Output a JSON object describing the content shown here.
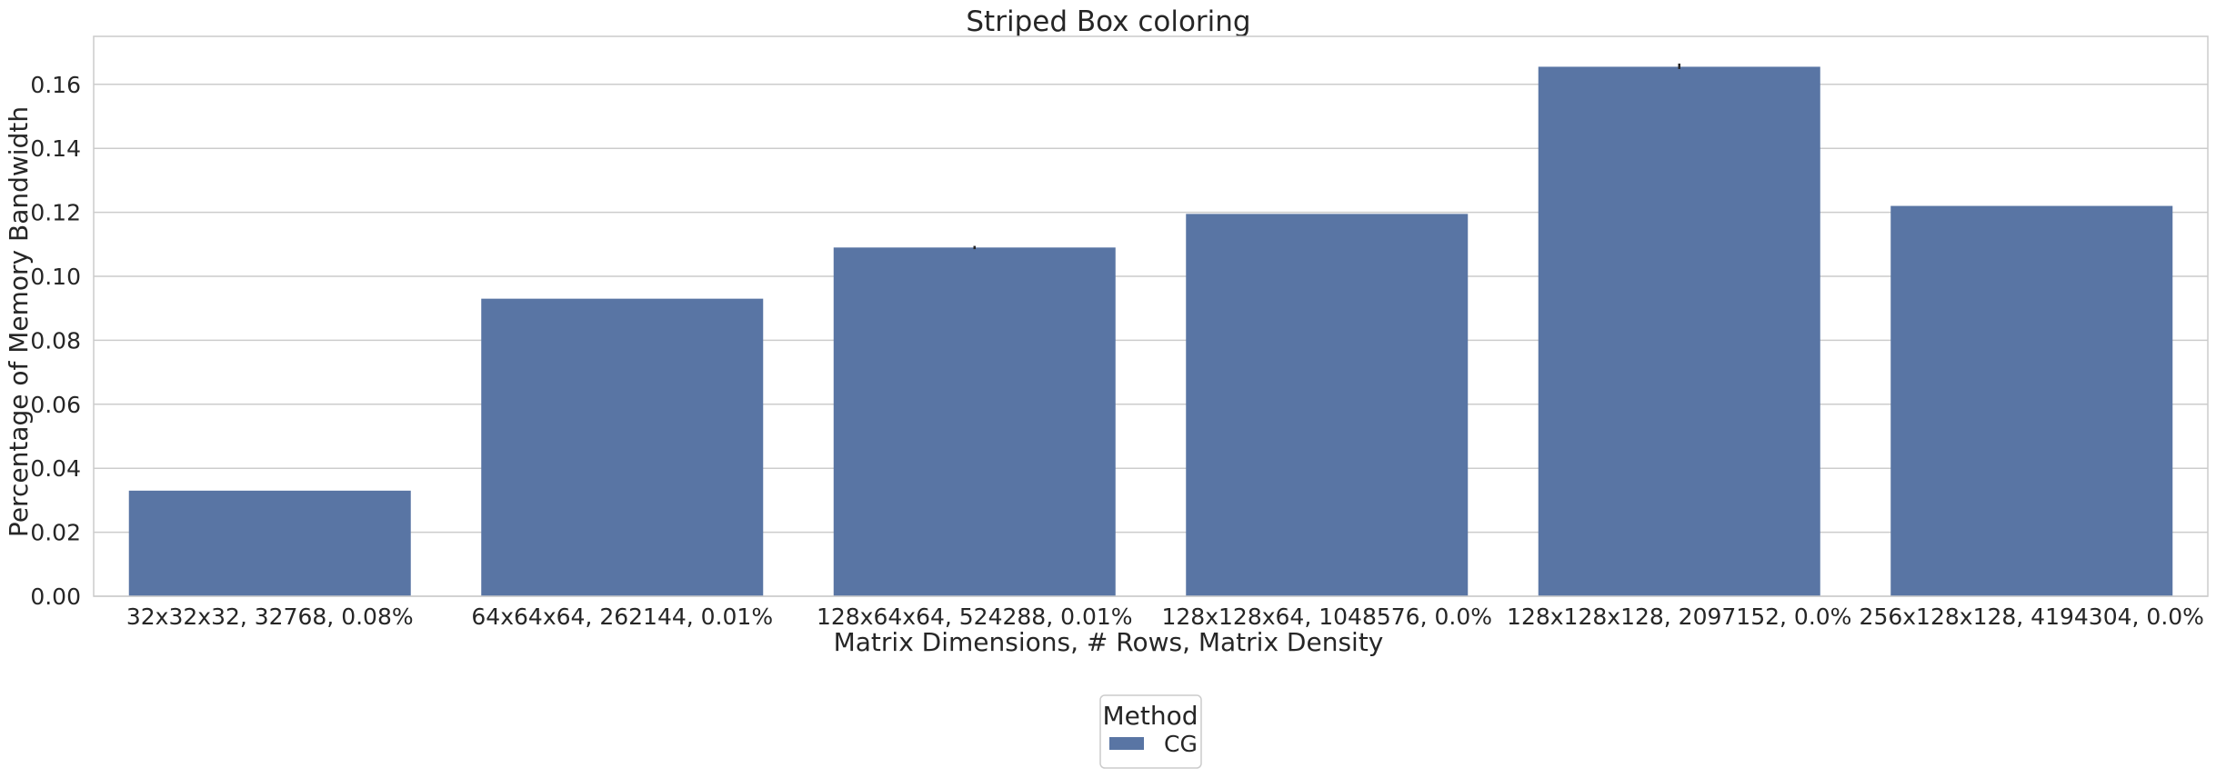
{
  "chart_data": {
    "type": "bar",
    "title": "Striped Box coloring",
    "xlabel": "Matrix Dimensions, # Rows, Matrix Density",
    "ylabel": "Percentage of Memory Bandwidth",
    "categories": [
      "32x32x32, 32768, 0.08%",
      "64x64x64, 262144, 0.01%",
      "128x64x64, 524288, 0.01%",
      "128x128x64, 1048576, 0.0%",
      "128x128x128, 2097152, 0.0%",
      "256x128x128, 4194304, 0.0%"
    ],
    "series": [
      {
        "name": "CG",
        "values": [
          0.033,
          0.093,
          0.109,
          0.1195,
          0.1655,
          0.122
        ],
        "error_high": [
          null,
          null,
          0.1095,
          null,
          0.1665,
          null
        ],
        "error_low": [
          null,
          null,
          0.1085,
          null,
          0.1648,
          null
        ]
      }
    ],
    "ylim": [
      0,
      0.175
    ],
    "yticks": [
      "0.00",
      "0.02",
      "0.04",
      "0.06",
      "0.08",
      "0.10",
      "0.12",
      "0.14",
      "0.16"
    ],
    "ytick_values": [
      0,
      0.02,
      0.04,
      0.06,
      0.08,
      0.1,
      0.12,
      0.14,
      0.16
    ],
    "grid": true,
    "legend": {
      "title": "Method",
      "placement": "bottom-center",
      "entries": [
        "CG"
      ]
    },
    "colors": {
      "bar": "#5975a4",
      "grid": "#cccccc",
      "axis_frame": "#cccccc",
      "text": "#262626",
      "error_bar": "#262626"
    }
  }
}
